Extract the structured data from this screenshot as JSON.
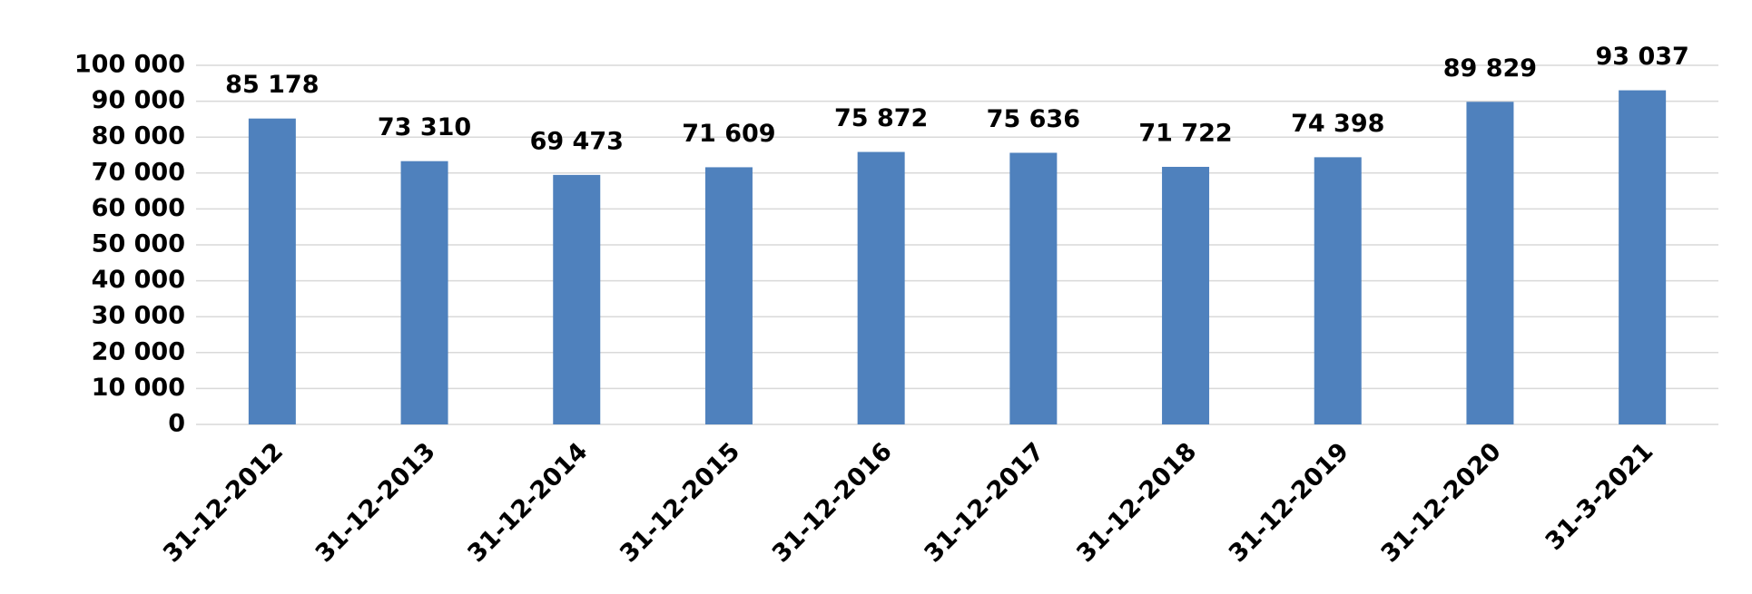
{
  "chart_data": {
    "type": "bar",
    "categories": [
      "31-12-2012",
      "31-12-2013",
      "31-12-2014",
      "31-12-2015",
      "31-12-2016",
      "31-12-2017",
      "31-12-2018",
      "31-12-2019",
      "31-12-2020",
      "31-3-2021"
    ],
    "values": [
      85178,
      73310,
      69473,
      71609,
      75872,
      75636,
      71722,
      74398,
      89829,
      93037
    ],
    "value_labels": [
      "85 178",
      "73 310",
      "69 473",
      "71 609",
      "75 872",
      "75 636",
      "71 722",
      "74 398",
      "89 829",
      "93 037"
    ],
    "color": "#4f81bd",
    "ylim": [
      0,
      100000
    ],
    "yticks": [
      0,
      {
        "value": 10000,
        "label": "10 000"
      },
      {
        "value": 20000,
        "label": "20 000"
      },
      {
        "value": 30000,
        "label": "30 000"
      },
      {
        "value": 40000,
        "label": "40 000"
      },
      {
        "value": 50000,
        "label": "50 000"
      },
      {
        "value": 60000,
        "label": "60 000"
      },
      {
        "value": 70000,
        "label": "70 000"
      },
      {
        "value": 80000,
        "label": "80 000"
      },
      {
        "value": 90000,
        "label": "90 000"
      },
      {
        "value": 100000,
        "label": "100 000"
      }
    ],
    "grid": true
  }
}
